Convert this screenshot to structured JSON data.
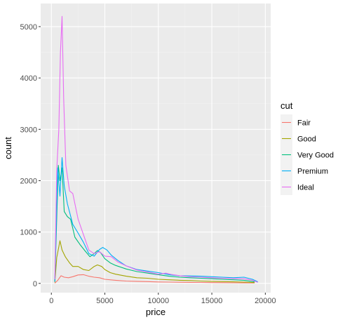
{
  "chart_data": {
    "type": "line",
    "title": "",
    "xlabel": "price",
    "ylabel": "count",
    "xlim": [
      -1000,
      20500
    ],
    "ylim": [
      -180,
      5450
    ],
    "x_ticks": [
      0,
      5000,
      10000,
      15000,
      20000
    ],
    "x_tick_labels": [
      "0",
      "5000",
      "10000",
      "15000",
      "20000"
    ],
    "y_ticks": [
      0,
      1000,
      2000,
      3000,
      4000,
      5000
    ],
    "y_tick_labels": [
      "0",
      "1000",
      "2000",
      "3000",
      "4000",
      "5000"
    ],
    "grid": true,
    "background": "#ebebeb",
    "legend": {
      "title": "cut",
      "position": "right"
    },
    "series": [
      {
        "name": "Fair",
        "color": "#f8766d",
        "x": [
          326,
          600,
          900,
          1200,
          1600,
          2000,
          2500,
          3000,
          3500,
          4000,
          4500,
          5000,
          6000,
          7000,
          8000,
          9000,
          10000,
          11000,
          12000,
          13000,
          14000,
          15000,
          16000,
          17000,
          18000,
          19000
        ],
        "y": [
          5,
          60,
          150,
          120,
          110,
          130,
          165,
          170,
          140,
          120,
          110,
          80,
          60,
          45,
          40,
          35,
          28,
          25,
          22,
          20,
          18,
          15,
          14,
          12,
          10,
          8
        ]
      },
      {
        "name": "Good",
        "color": "#a3a500",
        "x": [
          326,
          500,
          800,
          1000,
          1300,
          1700,
          2000,
          2500,
          3000,
          3500,
          4000,
          4300,
          4700,
          5000,
          5500,
          6000,
          7000,
          8000,
          9000,
          10000,
          11000,
          12000,
          13000,
          14000,
          15000,
          16000,
          17000,
          18000,
          19000
        ],
        "y": [
          20,
          500,
          830,
          650,
          520,
          400,
          330,
          330,
          270,
          250,
          330,
          360,
          330,
          270,
          210,
          180,
          140,
          110,
          100,
          80,
          70,
          60,
          55,
          45,
          40,
          35,
          30,
          25,
          15
        ]
      },
      {
        "name": "Very Good",
        "color": "#00bf7d",
        "x": [
          326,
          450,
          650,
          800,
          1000,
          1200,
          1500,
          1800,
          2200,
          2700,
          3200,
          3600,
          4000,
          4300,
          4600,
          5000,
          5500,
          6000,
          7000,
          8000,
          9000,
          10000,
          11000,
          12000,
          13000,
          14000,
          15000,
          16000,
          17000,
          18000,
          19000
        ],
        "y": [
          50,
          900,
          2300,
          2000,
          2250,
          1400,
          1300,
          1250,
          900,
          750,
          620,
          520,
          580,
          640,
          600,
          480,
          400,
          350,
          280,
          230,
          200,
          170,
          140,
          120,
          110,
          100,
          90,
          80,
          70,
          60,
          30
        ]
      },
      {
        "name": "Premium",
        "color": "#00b0f6",
        "x": [
          326,
          450,
          600,
          800,
          1000,
          1200,
          1500,
          2000,
          2500,
          3000,
          3500,
          4000,
          4500,
          4800,
          5200,
          5600,
          6200,
          7000,
          8000,
          9000,
          10000,
          11000,
          12000,
          13000,
          14000,
          15000,
          16000,
          17000,
          18000,
          18800,
          19300
        ],
        "y": [
          30,
          1100,
          2250,
          1700,
          2450,
          1900,
          1550,
          1150,
          980,
          800,
          580,
          530,
          660,
          700,
          650,
          550,
          450,
          340,
          270,
          240,
          210,
          170,
          150,
          145,
          140,
          130,
          120,
          110,
          120,
          80,
          30
        ]
      },
      {
        "name": "Ideal",
        "color": "#e76bf3",
        "x": [
          326,
          500,
          700,
          850,
          1000,
          1150,
          1350,
          1700,
          2000,
          2500,
          3000,
          3500,
          4000,
          4500,
          5000,
          5600,
          6200,
          7000,
          8000,
          9000,
          10000,
          10700,
          11200,
          12000,
          13000,
          14000,
          15000,
          16000,
          17000,
          18000,
          18800,
          19300
        ],
        "y": [
          80,
          2200,
          3000,
          4500,
          5200,
          3600,
          2300,
          1800,
          1750,
          1250,
          950,
          650,
          580,
          620,
          530,
          520,
          420,
          340,
          260,
          220,
          180,
          200,
          175,
          150,
          130,
          120,
          110,
          100,
          95,
          90,
          60,
          20
        ]
      }
    ]
  }
}
